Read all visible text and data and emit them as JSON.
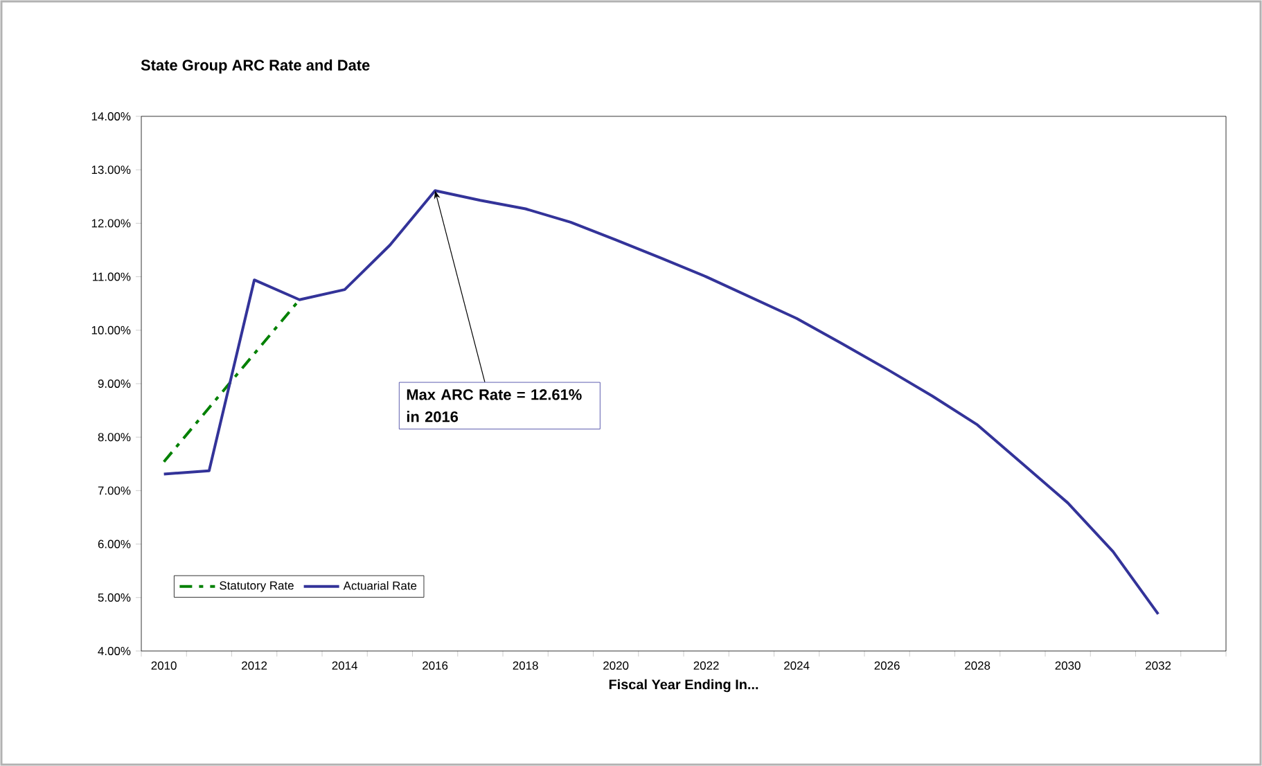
{
  "chart_data": {
    "type": "line",
    "title": "State Group ARC Rate and Date",
    "xlabel": "Fiscal Year Ending In...",
    "categories": [
      "2010",
      null,
      "2012",
      null,
      "2014",
      null,
      "2016",
      null,
      "2018",
      null,
      "2020",
      null,
      "2022",
      null,
      "2024",
      null,
      "2026",
      null,
      "2028",
      null,
      "2030",
      null,
      "2032",
      null
    ],
    "series": [
      {
        "name": "Statutory Rate",
        "color": "#008000",
        "line_style": "dashed",
        "values": [
          7.54,
          8.55,
          9.56,
          10.57,
          null,
          null,
          null,
          null,
          null,
          null,
          null,
          null,
          null,
          null,
          null,
          null,
          null,
          null,
          null,
          null,
          null,
          null,
          null,
          null
        ]
      },
      {
        "name": "Actuarial Rate",
        "color": "#333399",
        "line_style": "solid",
        "values": [
          7.31,
          7.37,
          10.94,
          10.57,
          10.76,
          11.59,
          12.61,
          12.43,
          12.27,
          12.02,
          11.69,
          11.35,
          11.0,
          10.61,
          10.22,
          9.75,
          9.27,
          8.77,
          8.23,
          7.5,
          6.77,
          5.86,
          4.69,
          null
        ]
      }
    ],
    "ylim": [
      4,
      14
    ],
    "yticks": [
      {
        "value": 4,
        "label": "4.00%"
      },
      {
        "value": 5,
        "label": "5.00%"
      },
      {
        "value": 6,
        "label": "6.00%"
      },
      {
        "value": 7,
        "label": "7.00%"
      },
      {
        "value": 8,
        "label": "8.00%"
      },
      {
        "value": 9,
        "label": "9.00%"
      },
      {
        "value": 10,
        "label": "10.00%"
      },
      {
        "value": 11,
        "label": "11.00%"
      },
      {
        "value": 12,
        "label": "12.00%"
      },
      {
        "value": 13,
        "label": "13.00%"
      },
      {
        "value": 14,
        "label": "14.00%"
      }
    ],
    "annotations": [
      {
        "text": "Max ARC Rate = 12.61% in 2016",
        "x": "2016",
        "y": 12.61
      }
    ],
    "legend": "bottom left",
    "grid": false
  }
}
